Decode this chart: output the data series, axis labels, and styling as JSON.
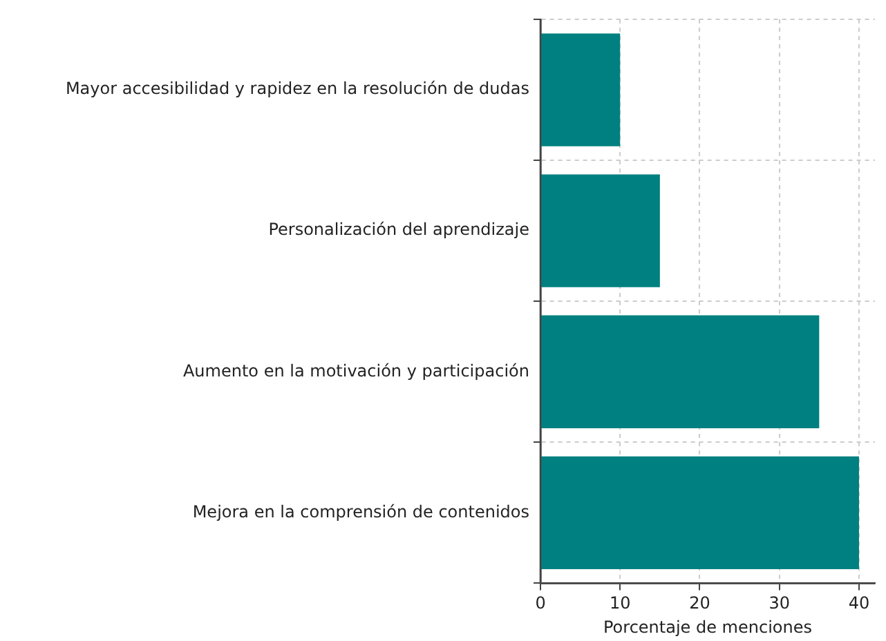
{
  "chart_data": {
    "type": "bar",
    "orientation": "horizontal",
    "xlabel": "Porcentaje de menciones",
    "categories": [
      "Mayor accesibilidad y rapidez en la resolución de dudas",
      "Personalización del aprendizaje",
      "Aumento en la motivación y participación",
      "Mejora en la comprensión de contenidos"
    ],
    "values": [
      10,
      15,
      35,
      40
    ],
    "color": "#008080",
    "xlim": [
      0,
      42
    ],
    "xticks": [
      0,
      10,
      20,
      30,
      40
    ],
    "grid": true
  }
}
